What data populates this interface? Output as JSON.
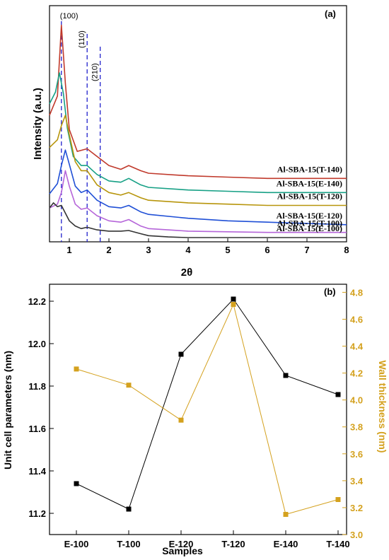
{
  "chart_data": [
    {
      "panel": "(a)",
      "type": "line",
      "xlabel": "2θ",
      "ylabel": "Intensity (a.u.)",
      "xlim": [
        0.5,
        8
      ],
      "xticks": [
        "1",
        "2",
        "3",
        "4",
        "5",
        "6",
        "7",
        "8"
      ],
      "grid": false,
      "peak_markers": [
        {
          "label": "(100)",
          "x": 0.8
        },
        {
          "label": "(110)",
          "x": 1.45
        },
        {
          "label": "(210)",
          "x": 1.78
        }
      ],
      "series": [
        {
          "name": "Al-SBA-15(T-140)",
          "color": "#c0392b",
          "x": [
            0.5,
            0.7,
            0.8,
            0.9,
            1.0,
            1.2,
            1.45,
            1.7,
            2.0,
            2.3,
            2.5,
            2.8,
            3.0,
            4.0,
            5.0,
            6.0,
            7.0,
            8.0
          ],
          "y": [
            9.5,
            11.0,
            16.5,
            12.0,
            8.4,
            6.7,
            6.9,
            6.3,
            5.6,
            5.3,
            5.6,
            5.2,
            5.0,
            4.8,
            4.7,
            4.6,
            4.6,
            4.6
          ]
        },
        {
          "name": "Al-SBA-15(E-140)",
          "color": "#16a085",
          "x": [
            0.5,
            0.65,
            0.75,
            0.85,
            0.95,
            1.1,
            1.3,
            1.45,
            1.7,
            2.0,
            2.3,
            2.5,
            2.8,
            3.0,
            4.0,
            5.0,
            6.0,
            7.0,
            8.0
          ],
          "y": [
            10.4,
            11.3,
            12.8,
            11.2,
            8.5,
            6.3,
            5.6,
            5.6,
            4.9,
            4.4,
            4.3,
            4.6,
            4.1,
            3.9,
            3.7,
            3.6,
            3.5,
            3.5,
            3.5
          ]
        },
        {
          "name": "Al-SBA-15(T-120)",
          "color": "#b7950b",
          "x": [
            0.5,
            0.7,
            0.8,
            0.9,
            1.0,
            1.15,
            1.3,
            1.45,
            1.7,
            2.0,
            2.3,
            2.5,
            2.8,
            3.0,
            4.0,
            5.0,
            6.0,
            7.0,
            8.0
          ],
          "y": [
            7.0,
            7.6,
            8.7,
            9.5,
            8.0,
            5.9,
            5.2,
            5.2,
            4.1,
            3.5,
            3.3,
            3.5,
            3.1,
            2.9,
            2.7,
            2.6,
            2.5,
            2.5,
            2.5
          ]
        },
        {
          "name": "Al-SBA-15(E-120)",
          "color": "#1f4fd6",
          "x": [
            0.5,
            0.7,
            0.8,
            0.9,
            1.0,
            1.15,
            1.3,
            1.45,
            1.7,
            2.0,
            2.3,
            2.5,
            2.8,
            3.0,
            4.0,
            5.0,
            6.0,
            7.0,
            8.0
          ],
          "y": [
            3.4,
            4.2,
            5.6,
            6.8,
            5.7,
            4.0,
            3.5,
            3.7,
            2.9,
            2.4,
            2.3,
            2.5,
            2.0,
            1.8,
            1.5,
            1.3,
            1.2,
            1.1,
            1.0
          ]
        },
        {
          "name": "Al-SBA-15(T-100)",
          "color": "#b565d9",
          "x": [
            0.5,
            0.7,
            0.8,
            0.9,
            1.0,
            1.15,
            1.3,
            1.45,
            1.7,
            2.0,
            2.3,
            2.5,
            2.8,
            3.0,
            4.0,
            5.0,
            6.0,
            7.0,
            8.0
          ],
          "y": [
            2.3,
            2.6,
            3.5,
            5.2,
            4.0,
            2.6,
            2.2,
            2.3,
            1.7,
            1.3,
            1.2,
            1.4,
            0.9,
            0.7,
            0.5,
            0.45,
            0.4,
            0.4,
            0.4
          ]
        },
        {
          "name": "Al-SBA-15(E-100)",
          "color": "#333333",
          "x": [
            0.5,
            0.6,
            0.7,
            0.8,
            0.9,
            1.0,
            1.15,
            1.3,
            1.45,
            1.7,
            2.0,
            2.3,
            2.5,
            2.8,
            3.0,
            3.5,
            4.0,
            5.0,
            6.0,
            7.0,
            8.0
          ],
          "y": [
            2.3,
            2.7,
            2.4,
            2.5,
            1.9,
            1.3,
            0.9,
            0.7,
            0.8,
            0.6,
            0.5,
            0.5,
            0.55,
            0.3,
            0.15,
            0.05,
            0.0,
            0.0,
            0.0,
            0.0,
            0.0
          ]
        }
      ]
    },
    {
      "panel": "(b)",
      "type": "line",
      "xlabel": "Samples",
      "ylabel": "Unit cell parameters (nm)",
      "y2label": "Wall thickness (nm)",
      "categories": [
        "E-100",
        "T-100",
        "E-120",
        "T-120",
        "E-140",
        "T-140"
      ],
      "ylim": [
        11.1,
        12.28
      ],
      "y2lim": [
        3.0,
        4.86
      ],
      "yticks": [
        "11.2",
        "11.4",
        "11.6",
        "11.8",
        "12.0",
        "12.2"
      ],
      "y2ticks": [
        "3.0",
        "3.2",
        "3.4",
        "3.6",
        "3.8",
        "4.0",
        "4.2",
        "4.4",
        "4.6",
        "4.8"
      ],
      "series": [
        {
          "name": "Unit cell parameters",
          "axis": "left",
          "color": "#000000",
          "values": [
            11.34,
            11.22,
            11.95,
            12.21,
            11.85,
            11.76
          ]
        },
        {
          "name": "Wall thickness",
          "axis": "right",
          "color": "#d4a11e",
          "values": [
            4.23,
            4.11,
            3.85,
            4.71,
            3.15,
            3.26
          ]
        }
      ]
    }
  ]
}
